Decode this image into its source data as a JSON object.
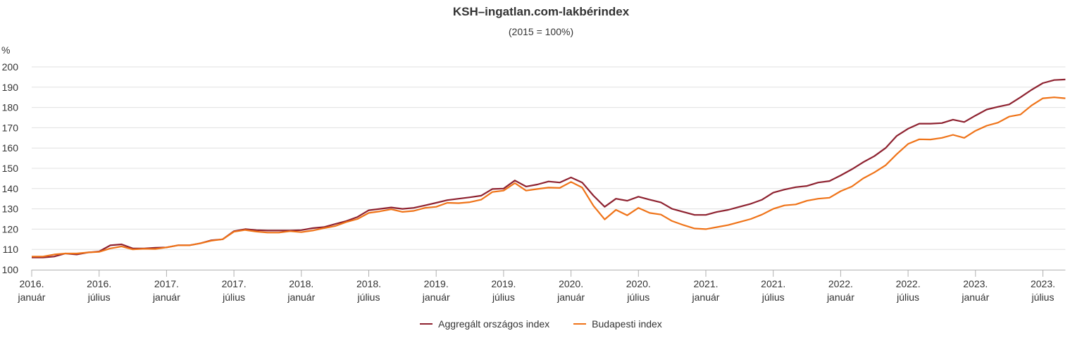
{
  "chart_data": {
    "type": "line",
    "title": "KSH–ingatlan.com-lakbérindex",
    "subtitle": "(2015 = 100%)",
    "ylabel": "%",
    "xlabel": "",
    "ylim": [
      100,
      200
    ],
    "yticks": [
      100,
      110,
      120,
      130,
      140,
      150,
      160,
      170,
      180,
      190,
      200
    ],
    "grid": true,
    "legend_position": "bottom",
    "x_start": "2016-01",
    "x_frequency": "monthly",
    "xtick_every_months": 6,
    "xtick_labels": [
      [
        "2016.",
        "január"
      ],
      [
        "2016.",
        "július"
      ],
      [
        "2017.",
        "január"
      ],
      [
        "2017.",
        "július"
      ],
      [
        "2018.",
        "január"
      ],
      [
        "2018.",
        "július"
      ],
      [
        "2019.",
        "január"
      ],
      [
        "2019.",
        "július"
      ],
      [
        "2020.",
        "január"
      ],
      [
        "2020.",
        "július"
      ],
      [
        "2021.",
        "január"
      ],
      [
        "2021.",
        "július"
      ],
      [
        "2022.",
        "január"
      ],
      [
        "2022.",
        "július"
      ],
      [
        "2023.",
        "január"
      ],
      [
        "2023.",
        "július"
      ]
    ],
    "series": [
      {
        "name": "Aggregált országos index",
        "color": "#8e2230",
        "values": [
          106,
          106,
          106.5,
          108,
          107.5,
          108.5,
          109,
          112,
          112.5,
          110.5,
          110.5,
          110.8,
          111,
          112,
          112,
          113,
          114.5,
          115,
          119,
          120,
          119.5,
          119.3,
          119.3,
          119.3,
          119.5,
          120.5,
          121,
          122.5,
          124,
          126,
          129.3,
          130,
          130.7,
          130,
          130.5,
          131.7,
          133,
          134.3,
          135,
          135.7,
          136.5,
          139.8,
          140,
          144,
          141,
          142,
          143.5,
          143,
          145.5,
          143,
          136.5,
          131,
          135,
          134,
          136,
          134.5,
          133.2,
          130,
          128.5,
          127,
          127,
          128.5,
          129.5,
          131,
          132.5,
          134.5,
          138,
          139.5,
          140.7,
          141.3,
          143,
          143.7,
          146.5,
          149.5,
          153,
          156,
          160,
          166,
          169.5,
          172,
          172,
          172.3,
          174,
          172.8,
          176,
          179,
          180.3,
          181.5,
          185,
          188.7,
          192,
          193.5,
          193.8
        ]
      },
      {
        "name": "Budapesti index",
        "color": "#ef7318",
        "values": [
          106.5,
          106.5,
          107.5,
          108,
          108,
          108.5,
          108.8,
          110.5,
          111.5,
          110,
          110.3,
          110.2,
          111,
          112,
          112,
          113,
          114.3,
          115,
          118.7,
          119.6,
          118.8,
          118.3,
          118.3,
          119,
          118.5,
          119.3,
          120.5,
          121.5,
          123.5,
          125,
          128,
          128.8,
          129.8,
          128.5,
          129,
          130.5,
          131,
          133,
          132.8,
          133.3,
          134.5,
          138.3,
          139,
          142.7,
          139,
          139.8,
          140.5,
          140.3,
          143.3,
          140.5,
          131.5,
          124.8,
          129.5,
          126.8,
          130.5,
          128,
          127.2,
          124,
          122,
          120.3,
          120,
          121,
          122,
          123.5,
          125,
          127.2,
          130,
          131.7,
          132.2,
          134,
          135,
          135.5,
          138.7,
          141,
          145,
          148,
          151.5,
          157,
          162,
          164.3,
          164.2,
          165,
          166.5,
          165,
          168.5,
          171,
          172.5,
          175.5,
          176.5,
          181,
          184.5,
          185,
          184.5
        ]
      }
    ]
  }
}
